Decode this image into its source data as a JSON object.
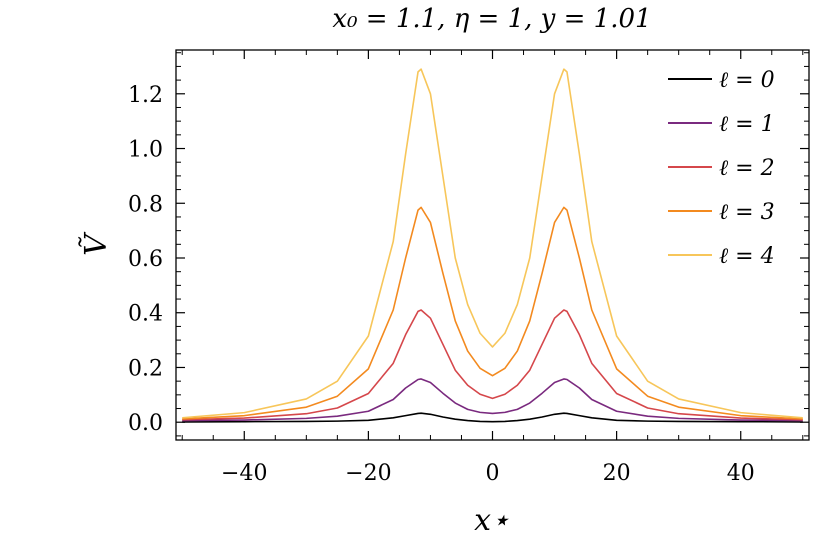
{
  "chart_data": {
    "type": "line",
    "title": "x₀ = 1.1, η = 1, y = 1.01",
    "xlabel": "x⋆",
    "ylabel": "Ṽ",
    "xlim": [
      -51,
      51
    ],
    "ylim": [
      -0.065,
      1.36
    ],
    "xticks": [
      -40,
      -20,
      0,
      20,
      40
    ],
    "xtick_labels": [
      "−40",
      "−20",
      "0",
      "20",
      "40"
    ],
    "yticks": [
      0.0,
      0.2,
      0.4,
      0.6,
      0.8,
      1.0,
      1.2
    ],
    "ytick_labels": [
      "0.0",
      "0.2",
      "0.4",
      "0.6",
      "0.8",
      "1.0",
      "1.2"
    ],
    "legend_position": "top-right",
    "grid": false,
    "series": [
      {
        "name": "ℓ = 0",
        "color": "#000000",
        "x": [
          -50,
          -40,
          -30,
          -25,
          -20,
          -16,
          -14,
          -12,
          -11.5,
          -10,
          -8,
          -6,
          -4,
          -2,
          0,
          2,
          4,
          6,
          8,
          10,
          11.5,
          12,
          14,
          16,
          20,
          25,
          30,
          40,
          50
        ],
        "y": [
          0.001,
          0.002,
          0.003,
          0.004,
          0.007,
          0.016,
          0.024,
          0.032,
          0.033,
          0.029,
          0.019,
          0.011,
          0.006,
          0.003,
          0.002,
          0.003,
          0.006,
          0.011,
          0.019,
          0.029,
          0.033,
          0.032,
          0.024,
          0.016,
          0.007,
          0.004,
          0.003,
          0.002,
          0.001
        ]
      },
      {
        "name": "ℓ = 1",
        "color": "#7a2a7f",
        "x": [
          -50,
          -40,
          -30,
          -25,
          -20,
          -16,
          -14,
          -12,
          -11.5,
          -10,
          -8,
          -6,
          -4,
          -2,
          0,
          2,
          4,
          6,
          8,
          10,
          11.5,
          12,
          14,
          16,
          20,
          25,
          30,
          40,
          50
        ],
        "y": [
          0.006,
          0.008,
          0.014,
          0.022,
          0.04,
          0.083,
          0.125,
          0.156,
          0.158,
          0.145,
          0.106,
          0.07,
          0.047,
          0.036,
          0.032,
          0.036,
          0.047,
          0.07,
          0.106,
          0.145,
          0.158,
          0.156,
          0.125,
          0.083,
          0.04,
          0.022,
          0.014,
          0.008,
          0.006
        ]
      },
      {
        "name": "ℓ = 2",
        "color": "#d5474b",
        "x": [
          -50,
          -40,
          -30,
          -25,
          -20,
          -16,
          -14,
          -12,
          -11.5,
          -10,
          -8,
          -6,
          -4,
          -2,
          0,
          2,
          4,
          6,
          8,
          10,
          11.5,
          12,
          14,
          16,
          20,
          25,
          30,
          40,
          50
        ],
        "y": [
          0.009,
          0.015,
          0.031,
          0.052,
          0.105,
          0.215,
          0.32,
          0.405,
          0.41,
          0.38,
          0.285,
          0.19,
          0.135,
          0.102,
          0.087,
          0.102,
          0.135,
          0.19,
          0.285,
          0.38,
          0.41,
          0.405,
          0.32,
          0.215,
          0.105,
          0.052,
          0.031,
          0.015,
          0.009
        ]
      },
      {
        "name": "ℓ = 3",
        "color": "#f38a1f",
        "x": [
          -50,
          -40,
          -30,
          -25,
          -20,
          -16,
          -14,
          -12,
          -11.5,
          -10,
          -8,
          -6,
          -4,
          -2,
          0,
          2,
          4,
          6,
          8,
          10,
          11.5,
          12,
          14,
          16,
          20,
          25,
          30,
          40,
          50
        ],
        "y": [
          0.012,
          0.024,
          0.055,
          0.095,
          0.195,
          0.41,
          0.6,
          0.775,
          0.785,
          0.73,
          0.545,
          0.37,
          0.26,
          0.197,
          0.17,
          0.197,
          0.26,
          0.37,
          0.545,
          0.73,
          0.785,
          0.775,
          0.6,
          0.41,
          0.195,
          0.095,
          0.055,
          0.024,
          0.012
        ]
      },
      {
        "name": "ℓ = 4",
        "color": "#f7c65a",
        "x": [
          -50,
          -40,
          -30,
          -25,
          -20,
          -16,
          -14,
          -12,
          -11.5,
          -10,
          -8,
          -6,
          -4,
          -2,
          0,
          2,
          4,
          6,
          8,
          10,
          11.5,
          12,
          14,
          16,
          20,
          25,
          30,
          40,
          50
        ],
        "y": [
          0.016,
          0.035,
          0.085,
          0.15,
          0.315,
          0.66,
          0.98,
          1.28,
          1.29,
          1.2,
          0.9,
          0.6,
          0.43,
          0.325,
          0.275,
          0.325,
          0.43,
          0.6,
          0.9,
          1.2,
          1.29,
          1.28,
          0.98,
          0.66,
          0.315,
          0.15,
          0.085,
          0.035,
          0.016
        ]
      }
    ]
  }
}
